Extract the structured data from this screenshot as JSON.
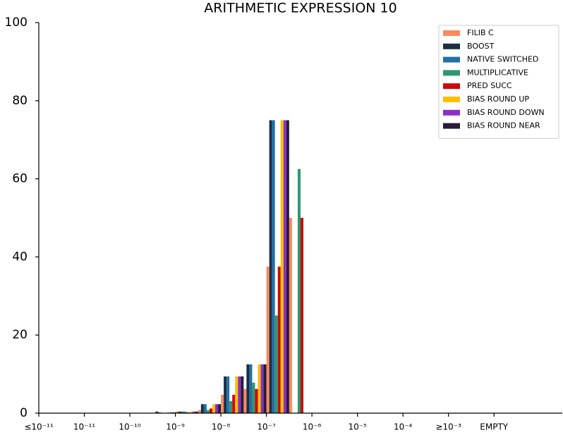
{
  "chart_data": {
    "type": "bar",
    "title": "ARITHMETIC EXPRESSION 10",
    "categories": [
      "≤10⁻¹¹",
      null,
      "10⁻¹¹",
      null,
      "10⁻¹⁰",
      null,
      "10⁻⁹",
      null,
      "10⁻⁸",
      null,
      "10⁻⁷",
      null,
      "10⁻⁶",
      null,
      "10⁻⁵",
      null,
      "10⁻⁴",
      null,
      "≥10⁻³",
      null,
      "EMPTY",
      null,
      null
    ],
    "series": [
      {
        "name": "FILIB C",
        "color": "#fc8a5e",
        "values": [
          0,
          0,
          0,
          0,
          0,
          0,
          0.4,
          0.8,
          4.7,
          6.2,
          37.5,
          50,
          0,
          0,
          0,
          0,
          0,
          0,
          0,
          0,
          0,
          0,
          0
        ]
      },
      {
        "name": "BOOST",
        "color": "#1c2e44",
        "values": [
          0,
          0,
          0,
          0,
          0,
          0.4,
          0.4,
          2.3,
          9.4,
          12.5,
          75,
          0,
          0,
          0,
          0,
          0,
          0,
          0,
          0,
          0,
          0,
          0,
          0
        ]
      },
      {
        "name": "NATIVE SWITCHED",
        "color": "#2370a6",
        "values": [
          0,
          0,
          0,
          0,
          0,
          0.2,
          0.4,
          2.3,
          9.4,
          12.5,
          75,
          0,
          0,
          0,
          0,
          0,
          0,
          0,
          0,
          0,
          0,
          0,
          0
        ]
      },
      {
        "name": "MULTIPLICATIVE",
        "color": "#2e9870",
        "values": [
          0,
          0,
          0,
          0,
          0,
          0,
          0.4,
          0.8,
          3.1,
          7.8,
          25,
          62.5,
          0,
          0,
          0,
          0,
          0,
          0,
          0,
          0,
          0,
          0,
          0
        ]
      },
      {
        "name": "PRED SUCC",
        "color": "#cc0a0a",
        "values": [
          0,
          0,
          0,
          0,
          0,
          0,
          0.2,
          1.2,
          4.7,
          6.2,
          37.5,
          50,
          0,
          0,
          0,
          0,
          0,
          0,
          0,
          0,
          0,
          0,
          0
        ]
      },
      {
        "name": "BIAS ROUND UP",
        "color": "#ffbf00",
        "values": [
          0,
          0,
          0,
          0,
          0,
          0.2,
          0.4,
          2.3,
          9.4,
          12.5,
          75,
          0,
          0,
          0,
          0,
          0,
          0,
          0,
          0,
          0,
          0,
          0,
          0
        ]
      },
      {
        "name": "BIAS ROUND DOWN",
        "color": "#8a2fc8",
        "values": [
          0,
          0,
          0,
          0,
          0,
          0.2,
          0.4,
          2.3,
          9.4,
          12.5,
          75,
          0,
          0,
          0,
          0,
          0,
          0,
          0,
          0,
          0,
          0,
          0,
          0
        ]
      },
      {
        "name": "BIAS ROUND NEAR",
        "color": "#281b38",
        "values": [
          0,
          0,
          0,
          0,
          0,
          0.2,
          0.4,
          2.3,
          9.4,
          12.5,
          75,
          0,
          0,
          0,
          0,
          0,
          0,
          0,
          0,
          0,
          0,
          0,
          0
        ]
      }
    ],
    "ylim": [
      0,
      100
    ],
    "yticks": [
      0,
      20,
      40,
      60,
      80,
      100
    ],
    "legend": "upper right"
  }
}
